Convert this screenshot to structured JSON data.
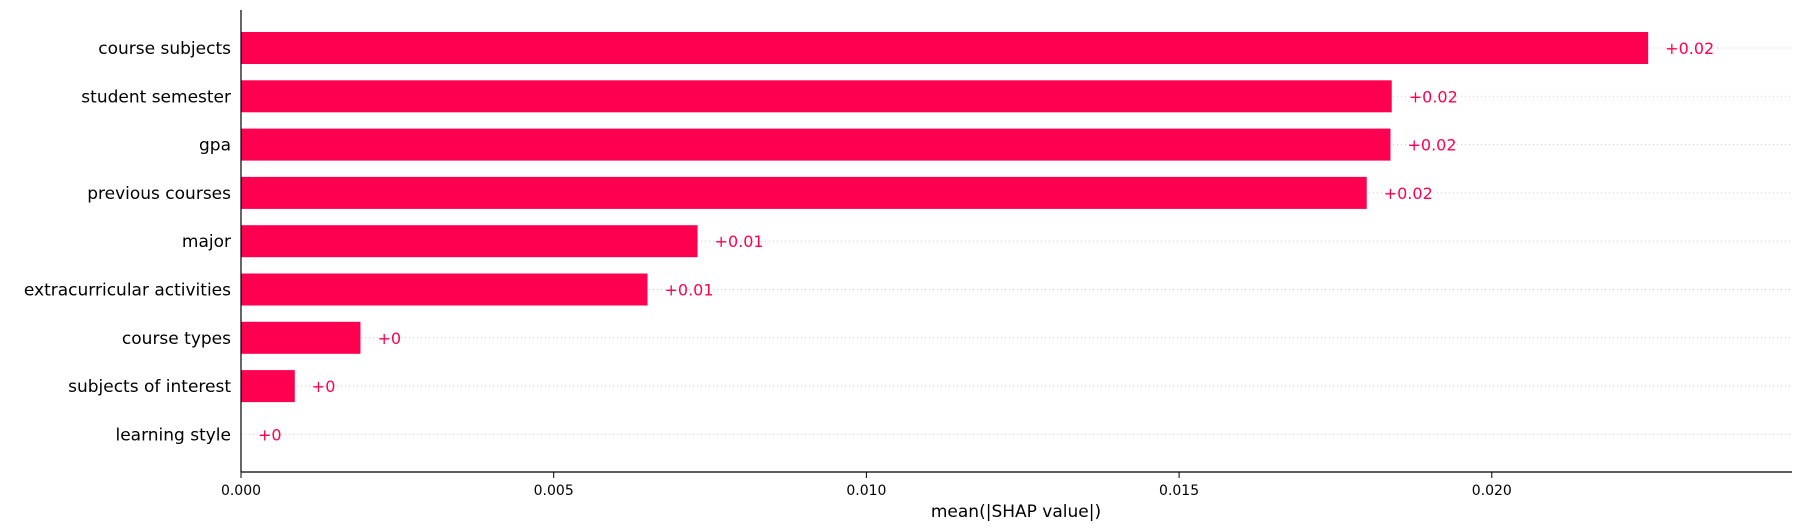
{
  "chart_data": {
    "type": "bar",
    "orientation": "horizontal",
    "categories": [
      "course subjects",
      "student semester",
      "gpa",
      "previous courses",
      "major",
      "extracurricular activities",
      "course types",
      "subjects of interest",
      "learning style"
    ],
    "values": [
      0.0225,
      0.0184,
      0.01838,
      0.018,
      0.0073,
      0.0065,
      0.00191,
      0.00086,
      0.0
    ],
    "data_labels": [
      "+0.02",
      "+0.02",
      "+0.02",
      "+0.02",
      "+0.01",
      "+0.01",
      "+0",
      "+0",
      "+0"
    ],
    "title": "",
    "xlabel": "mean(|SHAP value|)",
    "ylabel": "",
    "xlim": [
      0,
      0.0248
    ],
    "xticks": [
      0.0,
      0.005,
      0.01,
      0.015,
      0.02
    ],
    "xtick_labels": [
      "0.000",
      "0.005",
      "0.010",
      "0.015",
      "0.020"
    ],
    "grid": "dotted horizontal row guides",
    "legend": "none",
    "bar_color": "#ff0051",
    "label_color": "#ff0051",
    "guide_color": "#cccccc"
  }
}
